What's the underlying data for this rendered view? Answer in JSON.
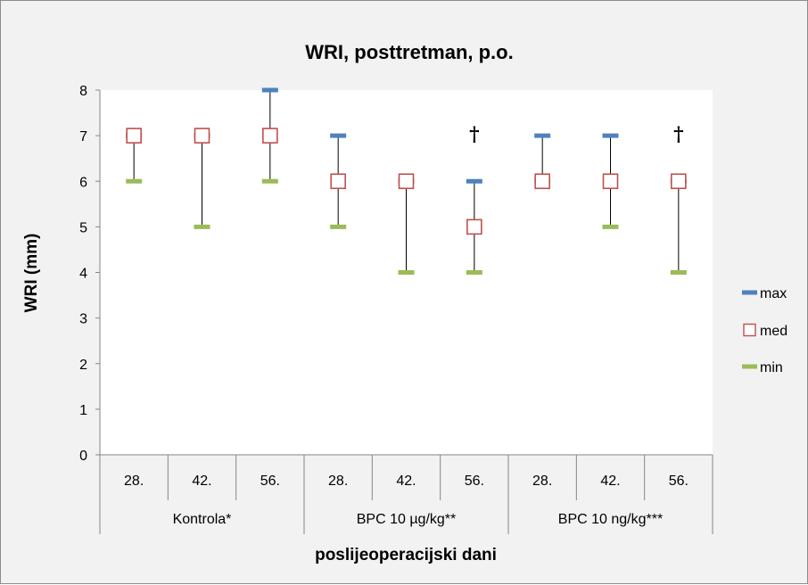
{
  "chart_data": {
    "type": "scatter",
    "title": "WRI, posttretman, p.o.",
    "ylabel": "WRI (mm)",
    "xlabel": "poslijeoperacijski dani",
    "ylim": [
      0,
      8
    ],
    "yticks": [
      0,
      1,
      2,
      3,
      4,
      5,
      6,
      7,
      8
    ],
    "grid": false,
    "legend_position": "right",
    "groups": [
      {
        "label": "Kontrola*",
        "categories": [
          "28.",
          "42.",
          "56."
        ]
      },
      {
        "label": "BPC 10 µg/kg**",
        "categories": [
          "28.",
          "42.",
          "56."
        ]
      },
      {
        "label": "BPC 10 ng/kg***",
        "categories": [
          "28.",
          "42.",
          "56."
        ]
      }
    ],
    "series": [
      {
        "name": "max",
        "color": "#4f81bd",
        "marker": "dash",
        "values": [
          7,
          7,
          8,
          7,
          6,
          6,
          7,
          7,
          6
        ]
      },
      {
        "name": "med",
        "color": "#c0504d",
        "marker": "open-square",
        "values": [
          7,
          7,
          7,
          6,
          6,
          5,
          6,
          6,
          6
        ]
      },
      {
        "name": "min",
        "color": "#9bbb59",
        "marker": "dash",
        "values": [
          6,
          5,
          6,
          5,
          4,
          4,
          6,
          5,
          4
        ]
      }
    ],
    "annotations": [
      {
        "text": "†",
        "category_index": 5,
        "y": 7
      },
      {
        "text": "†",
        "category_index": 8,
        "y": 7
      }
    ]
  }
}
